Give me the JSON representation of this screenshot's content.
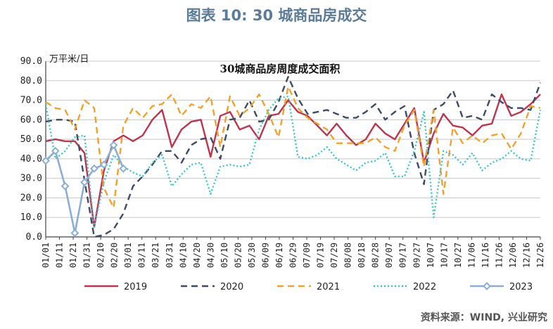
{
  "page_title": "图表 10: 30 城商品房成交",
  "source": "资料来源：WIND, 兴业研究",
  "chart_data": {
    "type": "line",
    "title": "30城商品房周度成交面积",
    "ylabel": "万平米/日",
    "ylim": [
      0,
      90
    ],
    "yticks": [
      "0.0",
      "10.0",
      "20.0",
      "30.0",
      "40.0",
      "50.0",
      "60.0",
      "70.0",
      "80.0",
      "90.0"
    ],
    "x_count": 52,
    "xtick_labels": [
      "01/01",
      "01/11",
      "01/21",
      "01/31",
      "02/10",
      "02/20",
      "03/01",
      "03/11",
      "03/21",
      "03/31",
      "04/10",
      "04/20",
      "04/30",
      "05/10",
      "05/20",
      "05/30",
      "06/09",
      "06/19",
      "06/29",
      "07/09",
      "07/19",
      "07/29",
      "08/08",
      "08/18",
      "08/28",
      "09/07",
      "09/17",
      "09/27",
      "10/07",
      "10/17",
      "10/27",
      "11/06",
      "11/16",
      "11/26",
      "12/06",
      "12/16",
      "12/26"
    ],
    "legend_position": "bottom",
    "series": [
      {
        "name": "2019",
        "color": "#c0334d",
        "dash": "solid",
        "values": [
          49,
          50,
          49,
          49,
          43,
          5,
          34,
          49,
          52,
          49,
          52,
          60,
          65,
          46,
          55,
          59,
          60,
          41,
          62,
          64,
          55,
          57,
          50,
          62,
          63,
          70,
          64,
          62,
          57,
          52,
          58,
          52,
          47,
          50,
          58,
          53,
          50,
          58,
          66,
          38,
          53,
          63,
          57,
          56,
          52,
          57,
          58,
          73,
          62,
          64,
          68,
          73
        ]
      },
      {
        "name": "2020",
        "color": "#3c4b66",
        "dash": "dash",
        "values": [
          59,
          60,
          60,
          59,
          29,
          0,
          1,
          4,
          12,
          26,
          31,
          37,
          44,
          44,
          38,
          47,
          50,
          51,
          40,
          60,
          61,
          70,
          59,
          60,
          69,
          82,
          71,
          63,
          64,
          65,
          63,
          61,
          61,
          64,
          68,
          60,
          64,
          67,
          43,
          27,
          65,
          68,
          75,
          61,
          62,
          60,
          73,
          69,
          66,
          66,
          65,
          79
        ]
      },
      {
        "name": "2021",
        "color": "#f2a12c",
        "dash": "dash",
        "values": [
          69,
          66,
          65,
          55,
          70,
          66,
          25,
          15,
          57,
          66,
          61,
          67,
          68,
          73,
          62,
          68,
          66,
          72,
          46,
          72,
          62,
          66,
          73,
          63,
          51,
          77,
          66,
          61,
          58,
          55,
          48,
          48,
          48,
          48,
          51,
          46,
          44,
          57,
          65,
          36,
          65,
          22,
          56,
          48,
          52,
          48,
          52,
          53,
          45,
          53,
          67,
          66
        ]
      },
      {
        "name": "2022",
        "color": "#38c6c8",
        "dash": "dot",
        "values": [
          68,
          40,
          44,
          51,
          52,
          5,
          28,
          42,
          36,
          33,
          31,
          38,
          42,
          26,
          32,
          37,
          38,
          22,
          36,
          37,
          36,
          37,
          55,
          65,
          71,
          72,
          41,
          40,
          42,
          46,
          40,
          37,
          34,
          38,
          39,
          43,
          31,
          31,
          44,
          64,
          10,
          44,
          42,
          37,
          43,
          34,
          38,
          40,
          44,
          40,
          39,
          65
        ]
      },
      {
        "name": "2023",
        "color": "#8aaed6",
        "dash": "solid",
        "marker": "diamond",
        "values": [
          39,
          44,
          26,
          2,
          28,
          35,
          37,
          47,
          35
        ]
      }
    ]
  }
}
